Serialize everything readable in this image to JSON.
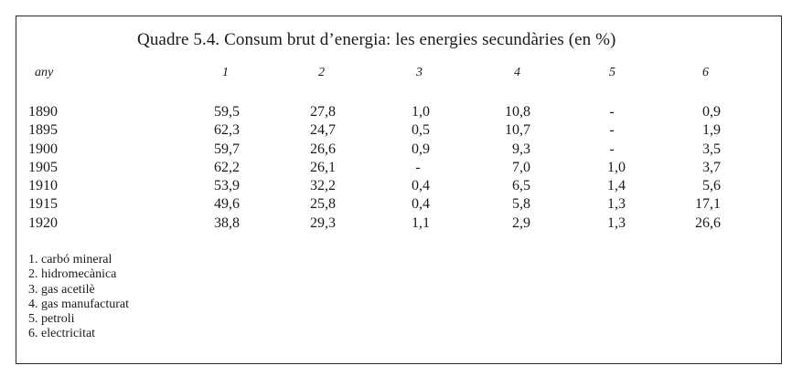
{
  "title": "Quadre 5.4. Consum brut d’energia: les energies secundàries (en %)",
  "header": {
    "year": "any",
    "columns": [
      "1",
      "2",
      "3",
      "4",
      "5",
      "6"
    ]
  },
  "rows": [
    {
      "year": "1890",
      "values": [
        "59,5",
        "27,8",
        "1,0",
        "10,8",
        "-",
        "0,9"
      ]
    },
    {
      "year": "1895",
      "values": [
        "62,3",
        "24,7",
        "0,5",
        "10,7",
        "-",
        "1,9"
      ]
    },
    {
      "year": "1900",
      "values": [
        "59,7",
        "26,6",
        "0,9",
        "9,3",
        "-",
        "3,5"
      ]
    },
    {
      "year": "1905",
      "values": [
        "62,2",
        "26,1",
        "-",
        "7,0",
        "1,0",
        "3,7"
      ]
    },
    {
      "year": "1910",
      "values": [
        "53,9",
        "32,2",
        "0,4",
        "6,5",
        "1,4",
        "5,6"
      ]
    },
    {
      "year": "1915",
      "values": [
        "49,6",
        "25,8",
        "0,4",
        "5,8",
        "1,3",
        "17,1"
      ]
    },
    {
      "year": "1920",
      "values": [
        "38,8",
        "29,3",
        "1,1",
        "2,9",
        "1,3",
        "26,6"
      ]
    }
  ],
  "legend": [
    "1. carbó mineral",
    "2. hidromecànica",
    "3. gas acetilè",
    "4. gas manufacturat",
    "5. petroli",
    "6. electricitat"
  ]
}
